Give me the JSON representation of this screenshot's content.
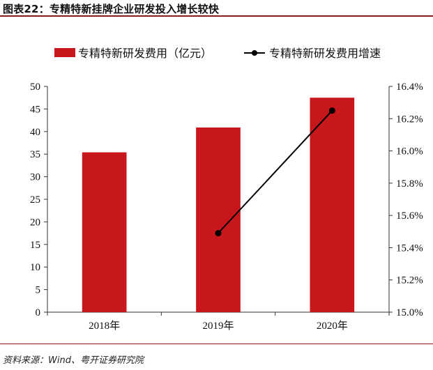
{
  "figure": {
    "title": "图表22：专精特新挂牌企业研发投入增长较快",
    "source": "资料来源：Wind、粤开证券研究院"
  },
  "colors": {
    "bar": "#c8161d",
    "line": "#000000",
    "rule": "#8b1a1a"
  },
  "chart_data": {
    "type": "bar",
    "categories": [
      "2018年",
      "2019年",
      "2020年"
    ],
    "series": [
      {
        "name": "专精特新研发费用（亿元）",
        "type": "bar",
        "axis": "left",
        "values": [
          35.4,
          40.9,
          47.5
        ]
      },
      {
        "name": "专精特新研发费用增速",
        "type": "line",
        "axis": "right",
        "values": [
          null,
          15.49,
          16.25
        ]
      }
    ],
    "y_left": {
      "min": 0,
      "max": 50,
      "step": 5,
      "ticks": [
        "0",
        "5",
        "10",
        "15",
        "20",
        "25",
        "30",
        "35",
        "40",
        "45",
        "50"
      ]
    },
    "y_right": {
      "min": 15.0,
      "max": 16.4,
      "step": 0.2,
      "ticks": [
        "15.0%",
        "15.2%",
        "15.4%",
        "15.6%",
        "15.8%",
        "16.0%",
        "16.2%",
        "16.4%"
      ]
    },
    "legend_position": "top"
  }
}
